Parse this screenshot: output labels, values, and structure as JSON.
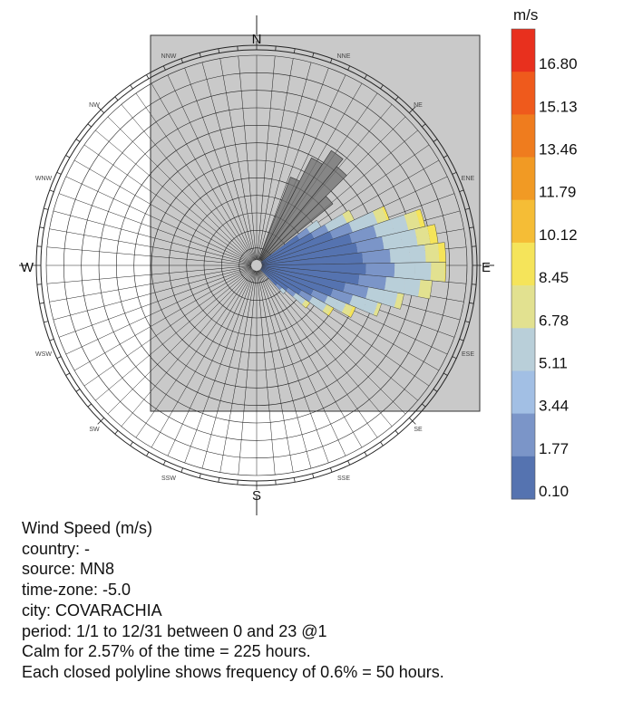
{
  "chart_data": {
    "type": "wind-rose",
    "directions_16": [
      "N",
      "NNE",
      "NE",
      "ENE",
      "E",
      "ESE",
      "SE",
      "SSE",
      "S",
      "SSW",
      "SW",
      "WSW",
      "W",
      "WNW",
      "NW",
      "NNW"
    ],
    "legend": {
      "unit": "m/s",
      "values": [
        "16.80",
        "15.13",
        "13.46",
        "11.79",
        "10.12",
        "8.45",
        "6.78",
        "5.11",
        "3.44",
        "1.77",
        "0.10"
      ],
      "colors": [
        "#e8301e",
        "#ef5a1c",
        "#ef7c1e",
        "#f19a24",
        "#f5bd36",
        "#f5e45a",
        "#e2e190",
        "#b9cfd9",
        "#a2bfe4",
        "#7b95c8",
        "#5573b0"
      ]
    },
    "wind_sectors": [
      {
        "bearing": 56,
        "frequency_pct": 2.3,
        "max_speed": 6.0
      },
      {
        "bearing": 62,
        "frequency_pct": 3.3,
        "max_speed": 8.5
      },
      {
        "bearing": 68,
        "frequency_pct": 4.3,
        "max_speed": 8.9
      },
      {
        "bearing": 74,
        "frequency_pct": 5.3,
        "max_speed": 9.2
      },
      {
        "bearing": 80,
        "frequency_pct": 5.6,
        "max_speed": 9.6
      },
      {
        "bearing": 86,
        "frequency_pct": 5.8,
        "max_speed": 9.4
      },
      {
        "bearing": 92,
        "frequency_pct": 5.8,
        "max_speed": 8.6
      },
      {
        "bearing": 98,
        "frequency_pct": 5.4,
        "max_speed": 8.3
      },
      {
        "bearing": 104,
        "frequency_pct": 4.6,
        "max_speed": 7.7
      },
      {
        "bearing": 110,
        "frequency_pct": 4.0,
        "max_speed": 7.4
      },
      {
        "bearing": 116,
        "frequency_pct": 3.3,
        "max_speed": 9.2
      },
      {
        "bearing": 122,
        "frequency_pct": 2.7,
        "max_speed": 9.0
      },
      {
        "bearing": 128,
        "frequency_pct": 2.0,
        "max_speed": 8.9
      },
      {
        "bearing": 134,
        "frequency_pct": 1.2,
        "max_speed": 5.5
      }
    ],
    "grey_sectors": [
      {
        "bearing": 24,
        "frequency_pct": 2.9
      },
      {
        "bearing": 30,
        "frequency_pct": 3.7
      },
      {
        "bearing": 36,
        "frequency_pct": 4.2
      },
      {
        "bearing": 42,
        "frequency_pct": 3.9
      },
      {
        "bearing": 48,
        "frequency_pct": 3.0
      }
    ]
  },
  "compass": {
    "N": "N",
    "E": "E",
    "S": "S",
    "W": "W",
    "NNE": "NNE",
    "NE": "NE",
    "ENE": "ENE",
    "ESE": "ESE",
    "SE": "SE",
    "SSE": "SSE",
    "SSW": "SSW",
    "SW": "SW",
    "WSW": "WSW",
    "WNW": "WNW",
    "NW": "NW",
    "NNW": "NNW"
  },
  "info": {
    "line1": "Wind Speed (m/s)",
    "line2": "country: -",
    "line3": "source: MN8",
    "line4": "time-zone: -5.0",
    "line5": "city: COVARACHIA",
    "line6": "period: 1/1 to 12/31 between 0 and 23 @1",
    "line7": "Calm for 2.57% of the time = 225 hours.",
    "line8": "Each closed polyline shows frequency of 0.6% = 50 hours."
  }
}
